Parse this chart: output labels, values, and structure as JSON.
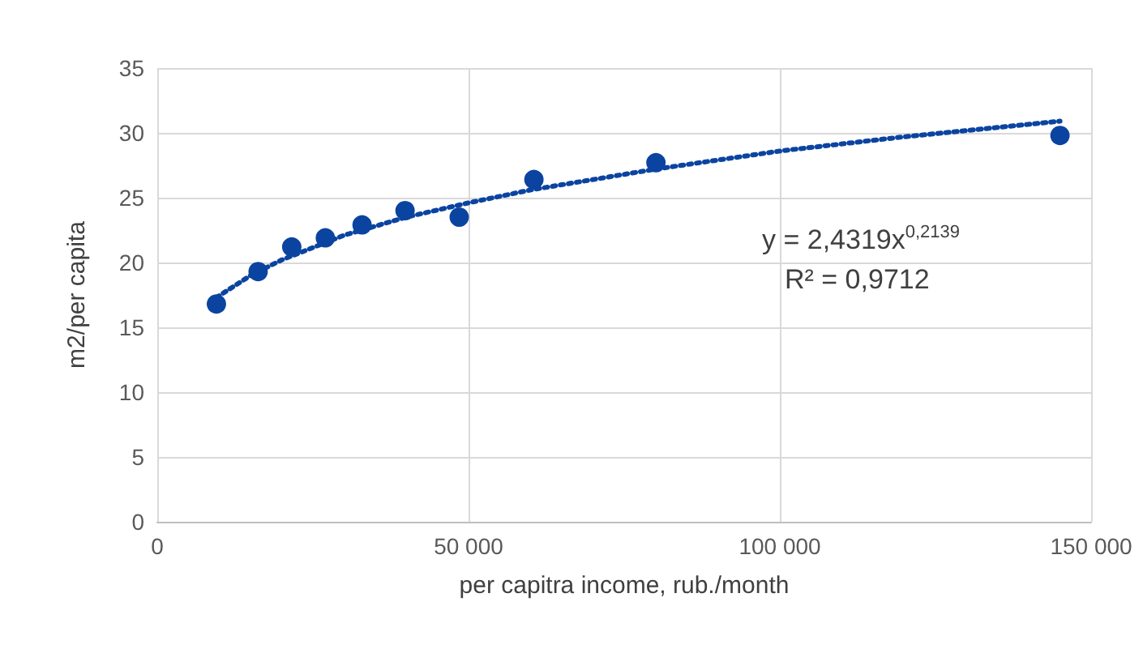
{
  "chart_data": {
    "type": "scatter",
    "xlabel": "per capitra income, rub./month",
    "ylabel": "m2/per capita",
    "series": [
      {
        "color": "#0b44a0",
        "x": [
          9500,
          16200,
          21600,
          27000,
          32900,
          39800,
          48500,
          60500,
          80100,
          145000
        ],
        "values": [
          16.8,
          19.3,
          21.2,
          21.9,
          22.9,
          24.0,
          23.5,
          26.4,
          27.7,
          29.8
        ]
      },
      {
        "type": "line",
        "color": "#0b44a0",
        "line_style": "dotted",
        "marker": "none",
        "x": [
          9500,
          15000,
          20000,
          30000,
          40000,
          50000,
          60000,
          80000,
          100000,
          120000,
          145000
        ],
        "values": [
          17.3,
          19.0,
          20.2,
          22.1,
          23.5,
          24.6,
          25.6,
          27.2,
          28.6,
          29.7,
          30.9
        ]
      }
    ],
    "marker": "circle",
    "xlim": [
      0,
      150000
    ],
    "xticks": [
      0,
      {
        "value": 50000,
        "label": "50 000"
      },
      {
        "value": 100000,
        "label": "100 000"
      },
      {
        "value": 150000,
        "label": "150 000"
      }
    ],
    "ylim": [
      0,
      35
    ],
    "yticks": [
      0,
      5,
      10,
      15,
      20,
      25,
      30,
      35
    ],
    "grid": true,
    "annotations": [
      "y = 2,4319x$^{0,2139}$",
      "R² = 0,9712"
    ]
  }
}
